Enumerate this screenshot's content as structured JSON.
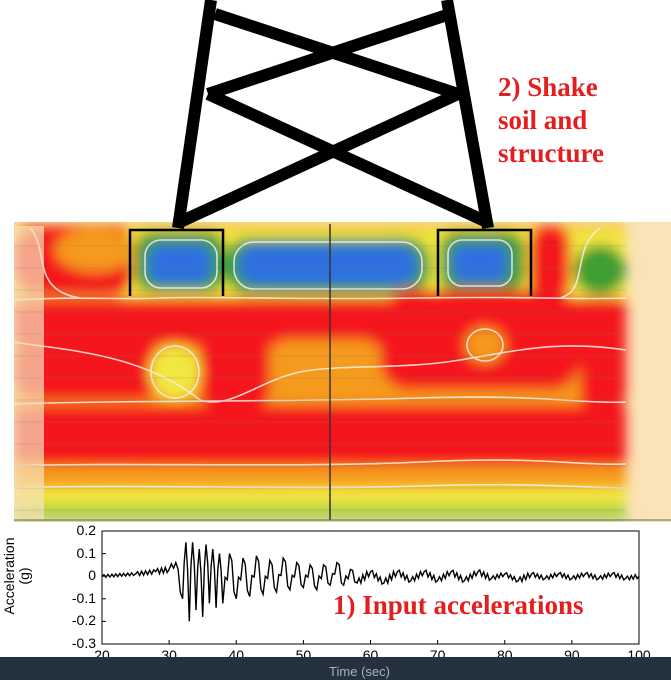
{
  "annotations": {
    "shake": [
      "2) Shake",
      "soil and",
      "structure"
    ],
    "input": "1) Input accelerations"
  },
  "colors": {
    "annotation": "#e41e1e",
    "soil_red": "#f4141c",
    "soil_orange": "#f59a1e",
    "soil_yellow": "#f2e640",
    "soil_green": "#3c9e32",
    "soil_blue": "#2e6fe0",
    "soil_background": "#fbe3b8",
    "footer": "#24313f"
  },
  "chart_data": {
    "type": "line",
    "xlabel": "Time (sec)",
    "ylabel": "Acceleration (g)",
    "xlim": [
      20,
      100
    ],
    "ylim": [
      -0.3,
      0.2
    ],
    "xticks": [
      "20",
      "30",
      "40",
      "50",
      "60",
      "70",
      "80",
      "90",
      "100"
    ],
    "yticks": [
      "0.2",
      "0.1",
      "0",
      "-0.1",
      "-0.2",
      "-0.3"
    ],
    "grid": false,
    "series": [
      {
        "x": [
          20,
          25,
          28,
          30,
          31,
          32,
          32.5,
          33,
          33.5,
          34,
          34.5,
          35,
          35.5,
          36,
          36.5,
          37,
          37.5,
          38,
          39,
          40,
          41,
          42,
          43,
          44,
          45,
          46,
          47,
          48,
          49,
          50,
          51,
          52,
          53,
          54,
          55,
          56,
          57,
          58,
          60,
          62,
          64,
          66,
          68,
          70,
          72,
          74,
          76,
          78,
          80,
          82,
          84,
          86,
          88,
          90,
          92,
          94,
          96,
          98,
          100
        ],
        "values": [
          0,
          0.01,
          0.02,
          0.03,
          0.06,
          -0.1,
          0.15,
          -0.2,
          0.15,
          -0.15,
          0.12,
          -0.18,
          0.14,
          -0.12,
          0.12,
          -0.14,
          0.1,
          -0.12,
          0.1,
          -0.1,
          0.08,
          -0.09,
          0.09,
          -0.08,
          0.07,
          -0.07,
          0.08,
          -0.06,
          0.06,
          -0.05,
          0.05,
          -0.06,
          0.05,
          -0.04,
          0.06,
          -0.04,
          0.03,
          -0.03,
          0.02,
          -0.03,
          0.02,
          -0.02,
          0.02,
          -0.02,
          0.02,
          -0.02,
          0.02,
          -0.01,
          0.01,
          -0.02,
          0.01,
          -0.01,
          0.01,
          -0.01,
          0.01,
          -0.01,
          0.01,
          -0.01,
          0
        ]
      }
    ]
  }
}
